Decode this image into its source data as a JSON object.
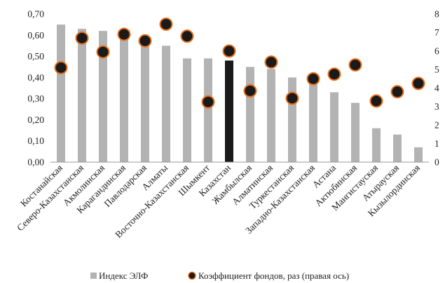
{
  "chart_data": {
    "type": "bar",
    "categories": [
      "Костанайская",
      "Северо-Казахстанская",
      "Акмолинская",
      "Карагандинская",
      "Павлодарская",
      "Алматы",
      "Восточно-Казахстанская",
      "Шымкент",
      "Казахстан",
      "Жамбылская",
      "Алматинская",
      "Туркестанская",
      "Западно-Казахстанская",
      "Астана",
      "Актюбинская",
      "Мангистауская",
      "Атырауская",
      "Кызылординская"
    ],
    "series": [
      {
        "name": "Индекс ЭЛФ",
        "type": "bar",
        "axis": "left",
        "color": "#b3b3b3",
        "highlight_color": "#1a1a1a",
        "highlight_category": "Казахстан",
        "values": [
          0.65,
          0.63,
          0.62,
          0.59,
          0.58,
          0.55,
          0.49,
          0.49,
          0.48,
          0.45,
          0.44,
          0.4,
          0.38,
          0.33,
          0.28,
          0.16,
          0.13,
          0.07
        ]
      },
      {
        "name": "Коэффициент фондов, раз (правая ось)",
        "type": "scatter",
        "axis": "right",
        "marker_fill": "#1a1a1a",
        "marker_edge": "#e8701a",
        "values": [
          5.1,
          6.7,
          5.95,
          6.9,
          6.55,
          7.45,
          6.8,
          3.25,
          6.0,
          3.85,
          5.4,
          3.45,
          4.5,
          4.75,
          5.25,
          3.3,
          3.8,
          4.25
        ]
      }
    ],
    "y_left": {
      "min": 0,
      "max": 0.7,
      "step": 0.1,
      "tick_labels": [
        "0,00",
        "0,10",
        "0,20",
        "0,30",
        "0,40",
        "0,50",
        "0,60",
        "0,70"
      ]
    },
    "y_right": {
      "min": 0,
      "max": 8,
      "step": 1,
      "tick_labels": [
        "0",
        "1",
        "2",
        "3",
        "4",
        "5",
        "6",
        "7",
        "8"
      ]
    },
    "grid": false,
    "legend_position": "bottom"
  }
}
